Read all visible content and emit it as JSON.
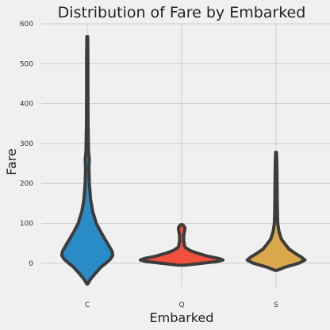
{
  "chart_data": {
    "type": "violin",
    "title": "Distribution of Fare by Embarked",
    "xlabel": "Embarked",
    "ylabel": "Fare",
    "categories": [
      "C",
      "Q",
      "S"
    ],
    "ylim": [
      -60,
      600
    ],
    "yticks": [
      0,
      100,
      200,
      300,
      400,
      500,
      600
    ],
    "grid": true,
    "colors": [
      "#2a8cc6",
      "#f0503c",
      "#d9a84a"
    ],
    "series": [
      {
        "name": "C",
        "min": -52,
        "max": 568,
        "profile": [
          [
            -52,
            0.01
          ],
          [
            -40,
            0.08
          ],
          [
            -25,
            0.2
          ],
          [
            -10,
            0.33
          ],
          [
            0,
            0.45
          ],
          [
            10,
            0.56
          ],
          [
            20,
            0.62
          ],
          [
            30,
            0.6
          ],
          [
            45,
            0.52
          ],
          [
            60,
            0.43
          ],
          [
            80,
            0.32
          ],
          [
            100,
            0.22
          ],
          [
            130,
            0.13
          ],
          [
            160,
            0.08
          ],
          [
            200,
            0.05
          ],
          [
            240,
            0.04
          ],
          [
            260,
            0.05
          ],
          [
            280,
            0.03
          ],
          [
            350,
            0.02
          ],
          [
            450,
            0.015
          ],
          [
            520,
            0.015
          ],
          [
            568,
            0.01
          ]
        ]
      },
      {
        "name": "Q",
        "min": -5,
        "max": 97,
        "profile": [
          [
            -5,
            0.08
          ],
          [
            0,
            0.5
          ],
          [
            4,
            0.85
          ],
          [
            8,
            1.0
          ],
          [
            12,
            0.9
          ],
          [
            18,
            0.62
          ],
          [
            25,
            0.38
          ],
          [
            32,
            0.2
          ],
          [
            40,
            0.08
          ],
          [
            55,
            0.05
          ],
          [
            70,
            0.05
          ],
          [
            80,
            0.07
          ],
          [
            88,
            0.08
          ],
          [
            94,
            0.05
          ],
          [
            97,
            0.01
          ]
        ]
      },
      {
        "name": "S",
        "min": -18,
        "max": 278,
        "profile": [
          [
            -18,
            0.02
          ],
          [
            -10,
            0.22
          ],
          [
            0,
            0.55
          ],
          [
            8,
            0.7
          ],
          [
            15,
            0.62
          ],
          [
            25,
            0.46
          ],
          [
            35,
            0.32
          ],
          [
            45,
            0.24
          ],
          [
            60,
            0.13
          ],
          [
            80,
            0.07
          ],
          [
            100,
            0.04
          ],
          [
            140,
            0.03
          ],
          [
            200,
            0.025
          ],
          [
            250,
            0.02
          ],
          [
            278,
            0.01
          ]
        ]
      }
    ]
  }
}
